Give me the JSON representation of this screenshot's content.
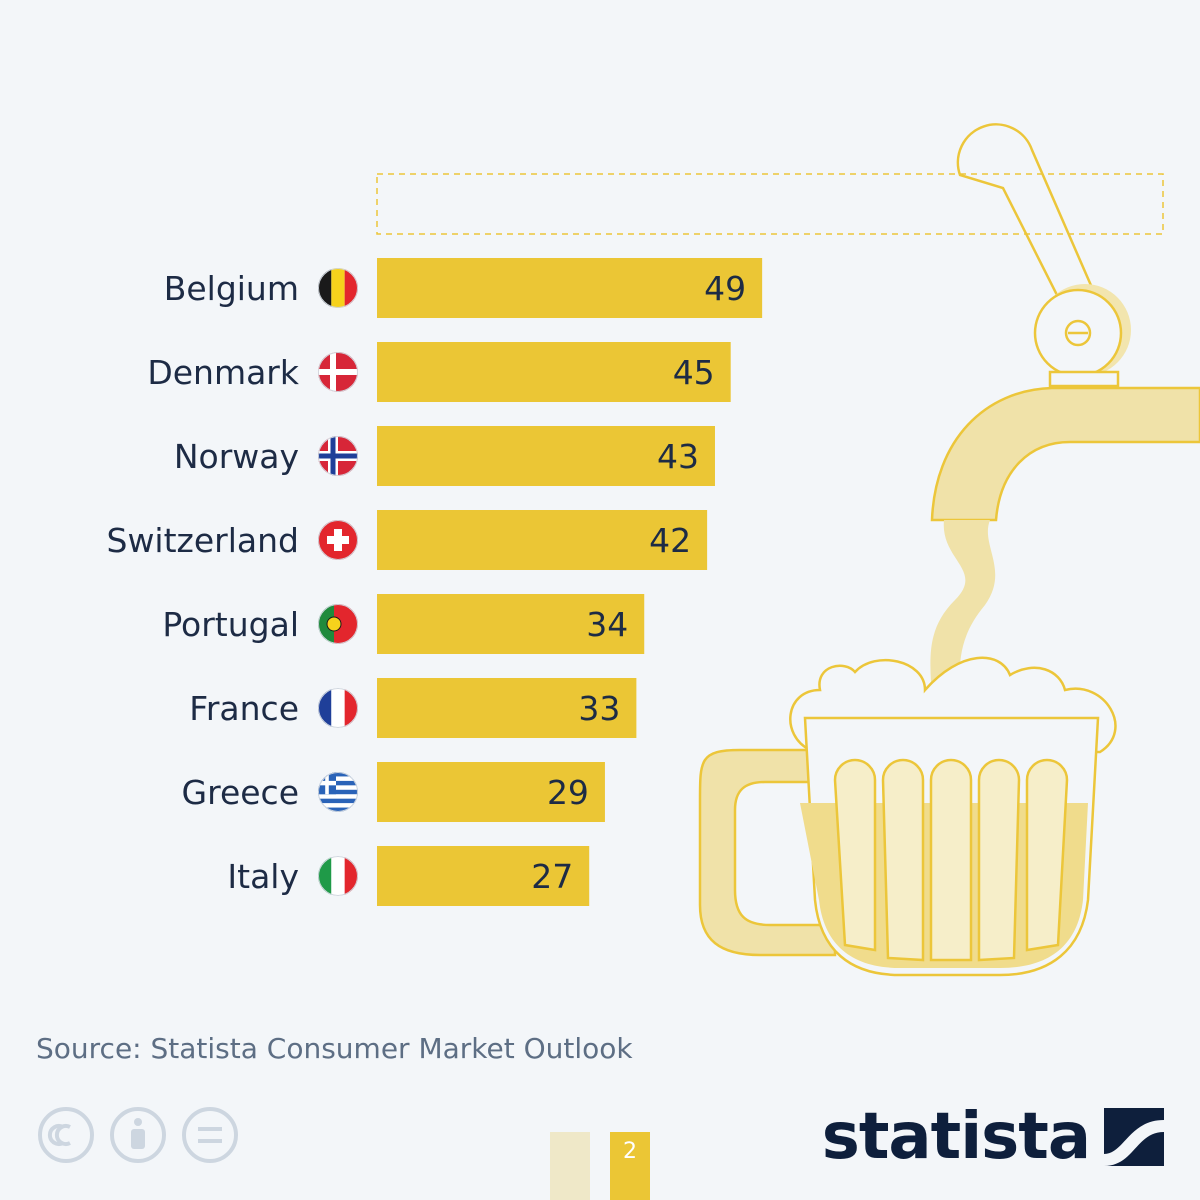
{
  "chart_data": {
    "type": "bar",
    "orientation": "horizontal",
    "title": "",
    "xlabel": "",
    "ylabel": "",
    "categories": [
      "Belgium",
      "Denmark",
      "Norway",
      "Switzerland",
      "Portugal",
      "France",
      "Greece",
      "Italy"
    ],
    "values": [
      49,
      45,
      43,
      42,
      34,
      33,
      29,
      27
    ],
    "flags": [
      "belgium-flag-icon",
      "denmark-flag-icon",
      "norway-flag-icon",
      "switzerland-flag-icon",
      "portugal-flag-icon",
      "france-flag-icon",
      "greece-flag-icon",
      "italy-flag-icon"
    ],
    "xlim": [
      0,
      100
    ],
    "grid": false,
    "legend": "none",
    "bar_color": "#ebc635"
  },
  "source": "Source: Statista Consumer Market Outlook",
  "brand": {
    "name": "statista",
    "color": "#0e1f3c"
  },
  "license_icons": [
    "cc-icon",
    "attribution-icon",
    "no-derivatives-icon"
  ],
  "pager": {
    "current": "2"
  },
  "colors": {
    "background": "#f3f6f9",
    "accent": "#ebc635",
    "illustration": "#efe1a6",
    "text": "#1d2b45"
  }
}
